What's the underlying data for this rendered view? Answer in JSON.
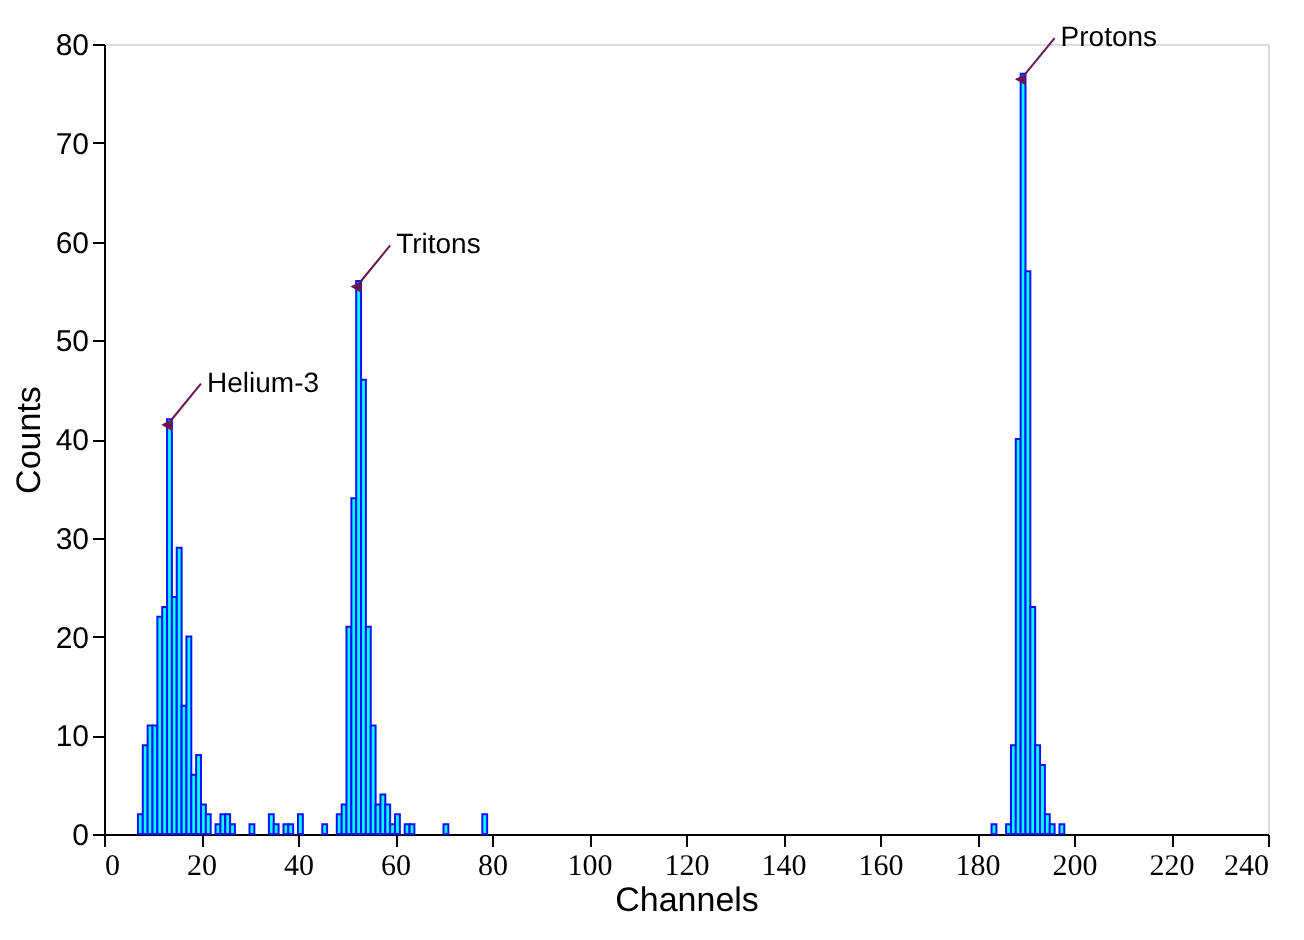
{
  "chart_data": {
    "type": "histogram",
    "xlabel": "Channels",
    "ylabel": "Counts",
    "color": "#00ffff",
    "bins": [
      0,
      1,
      2,
      3,
      4,
      5,
      6,
      7,
      8,
      9,
      10,
      11,
      12,
      13,
      14,
      15,
      16,
      17,
      18,
      19,
      20,
      21,
      22,
      23,
      24,
      25,
      26,
      27,
      28,
      29,
      30,
      31,
      32,
      33,
      34,
      35,
      36,
      37,
      38,
      39,
      40,
      41,
      42,
      43,
      44,
      45,
      46,
      47,
      48,
      49,
      50,
      51,
      52,
      53,
      54,
      55,
      56,
      57,
      58,
      59,
      60,
      61,
      62,
      63,
      64,
      65,
      66,
      67,
      68,
      69,
      70,
      71,
      72,
      73,
      74,
      75,
      76,
      77,
      78,
      79,
      80,
      81,
      82,
      83,
      84,
      85,
      86,
      87,
      88,
      89,
      90,
      91,
      92,
      93,
      94,
      95,
      96,
      97,
      98,
      99,
      100,
      101,
      102,
      103,
      104,
      105,
      106,
      107,
      108,
      109,
      110,
      111,
      112,
      113,
      114,
      115,
      116,
      117,
      118,
      119,
      120,
      121,
      122,
      123,
      124,
      125,
      126,
      127,
      128,
      129,
      130,
      131,
      132,
      133,
      134,
      135,
      136,
      137,
      138,
      139,
      140,
      141,
      142,
      143,
      144,
      145,
      146,
      147,
      148,
      149,
      150,
      151,
      152,
      153,
      154,
      155,
      156,
      157,
      158,
      159,
      160,
      161,
      162,
      163,
      164,
      165,
      166,
      167,
      168,
      169,
      170,
      171,
      172,
      173,
      174,
      175,
      176,
      177,
      178,
      179,
      180,
      181,
      182,
      183,
      184,
      185,
      186,
      187,
      188,
      189,
      190,
      191,
      192,
      193,
      194,
      195,
      196,
      197,
      198,
      199,
      200,
      201,
      202,
      203,
      204,
      205,
      206,
      207
    ],
    "values": [
      0,
      0,
      0,
      0,
      0,
      0,
      0,
      2,
      9,
      11,
      11,
      22,
      23,
      42,
      24,
      29,
      13,
      20,
      6,
      8,
      3,
      2,
      0,
      1,
      2,
      2,
      1,
      0,
      0,
      0,
      1,
      0,
      0,
      0,
      2,
      1,
      0,
      1,
      1,
      0,
      2,
      0,
      0,
      0,
      0,
      1,
      0,
      0,
      2,
      3,
      21,
      34,
      56,
      46,
      21,
      11,
      3,
      4,
      3,
      1,
      2,
      0,
      1,
      1,
      0,
      0,
      0,
      0,
      0,
      0,
      1,
      0,
      0,
      0,
      0,
      0,
      0,
      0,
      2,
      0,
      0,
      0,
      0,
      0,
      0,
      0,
      0,
      0,
      0,
      0,
      0,
      0,
      0,
      0,
      0,
      0,
      0,
      0,
      0,
      0,
      0,
      0,
      0,
      0,
      0,
      0,
      0,
      0,
      0,
      0,
      0,
      0,
      0,
      0,
      0,
      0,
      0,
      0,
      0,
      0,
      0,
      0,
      0,
      0,
      0,
      0,
      0,
      0,
      0,
      0,
      0,
      0,
      0,
      0,
      0,
      0,
      0,
      0,
      0,
      0,
      0,
      0,
      0,
      0,
      0,
      0,
      0,
      0,
      0,
      0,
      0,
      0,
      0,
      0,
      0,
      0,
      0,
      0,
      0,
      0,
      0,
      0,
      0,
      0,
      0,
      0,
      0,
      0,
      0,
      0,
      0,
      0,
      0,
      0,
      0,
      0,
      0,
      0,
      0,
      0,
      0,
      0,
      0,
      1,
      0,
      0,
      1,
      9,
      40,
      77,
      57,
      23,
      9,
      7,
      2,
      1,
      0,
      1,
      0,
      0,
      0,
      0,
      0,
      0,
      0,
      0,
      0
    ],
    "xlim": [
      0,
      240
    ],
    "xticks": [
      0,
      20,
      40,
      60,
      80,
      100,
      120,
      140,
      160,
      180,
      200,
      220,
      240
    ],
    "ylim": [
      0,
      80
    ],
    "yticks": [
      0,
      10,
      20,
      30,
      40,
      50,
      60,
      70,
      80
    ],
    "grid": false,
    "annotations": [
      {
        "text": "Helium-3",
        "x": 14,
        "y": 42
      },
      {
        "text": "Tritons",
        "x": 53,
        "y": 56
      },
      {
        "text": "Protons",
        "x": 190,
        "y": 77
      }
    ]
  }
}
